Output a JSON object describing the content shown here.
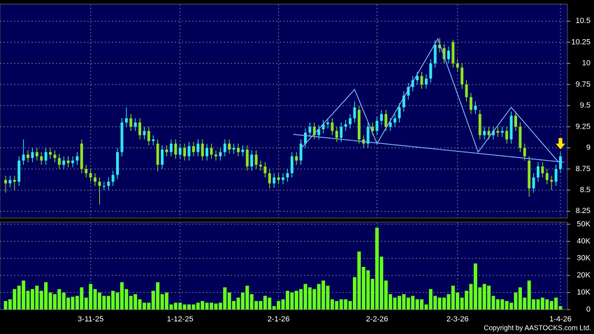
{
  "chart_data": [
    {
      "type": "candlestick",
      "up_color": "#33e4ee",
      "down_color": "#8fe022",
      "background": "#000058",
      "grid": true,
      "ylim": [
        8.17,
        10.7
      ],
      "yticks": [
        8.25,
        8.5,
        8.75,
        9,
        9.25,
        9.5,
        9.75,
        10,
        10.25,
        10.5
      ],
      "open": [
        8.62,
        8.58,
        8.62,
        8.6,
        8.85,
        8.92,
        8.88,
        8.95,
        8.9,
        8.85,
        8.95,
        8.92,
        8.88,
        8.8,
        8.85,
        8.82,
        8.85,
        9.05,
        8.75,
        8.7,
        8.65,
        8.6,
        8.55,
        8.55,
        8.6,
        8.68,
        8.95,
        9.3,
        9.35,
        9.25,
        9.3,
        9.15,
        9.2,
        9.08,
        9.05,
        8.8,
        8.98,
        8.95,
        9.05,
        8.92,
        9.0,
        8.9,
        9.02,
        8.95,
        9.05,
        8.9,
        9.0,
        8.92,
        8.9,
        8.95,
        9.05,
        8.98,
        9.0,
        8.95,
        8.98,
        8.78,
        8.92,
        8.8,
        8.78,
        8.7,
        8.58,
        8.65,
        8.62,
        8.65,
        8.7,
        8.9,
        8.85,
        9.05,
        9.18,
        9.25,
        9.15,
        9.22,
        9.28,
        9.3,
        9.2,
        9.12,
        9.25,
        9.28,
        9.35,
        9.45,
        9.1,
        9.05,
        9.25,
        9.2,
        9.32,
        9.4,
        9.25,
        9.3,
        9.35,
        9.48,
        9.62,
        9.72,
        9.8,
        9.85,
        9.75,
        9.82,
        10.0,
        10.22,
        10.18,
        10.05,
        10.25,
        10.0,
        9.95,
        9.75,
        9.6,
        9.45,
        9.4,
        9.15,
        9.2,
        9.15,
        9.2,
        9.18,
        9.2,
        9.1,
        9.38,
        9.25,
        9.0,
        8.85,
        8.52,
        8.65,
        8.78,
        8.7,
        8.62,
        8.6,
        8.75
      ],
      "high": [
        8.67,
        8.67,
        8.67,
        8.9,
        9.1,
        8.97,
        9.0,
        9.0,
        8.95,
        9.0,
        9.0,
        8.97,
        8.93,
        8.9,
        8.9,
        8.9,
        8.95,
        9.1,
        8.8,
        8.75,
        8.7,
        8.65,
        8.6,
        8.65,
        8.73,
        9.0,
        9.35,
        9.48,
        9.4,
        9.35,
        9.35,
        9.25,
        9.25,
        9.15,
        9.1,
        9.03,
        9.03,
        9.1,
        9.1,
        9.05,
        9.05,
        9.07,
        9.07,
        9.1,
        9.1,
        9.05,
        9.05,
        8.97,
        9.0,
        9.1,
        9.1,
        9.05,
        9.05,
        9.03,
        9.03,
        8.97,
        8.97,
        8.85,
        8.83,
        8.75,
        8.7,
        8.7,
        8.7,
        8.75,
        8.95,
        8.95,
        9.1,
        9.23,
        9.3,
        9.3,
        9.27,
        9.33,
        9.35,
        9.35,
        9.25,
        9.3,
        9.33,
        9.4,
        9.55,
        9.5,
        9.15,
        9.3,
        9.3,
        9.37,
        9.45,
        9.45,
        9.35,
        9.4,
        9.53,
        9.67,
        9.77,
        9.85,
        9.9,
        9.9,
        9.87,
        10.05,
        10.27,
        10.3,
        10.23,
        10.2,
        10.28,
        10.05,
        10.0,
        9.8,
        9.65,
        9.55,
        9.45,
        9.25,
        9.25,
        9.25,
        9.25,
        9.25,
        9.25,
        9.43,
        9.43,
        9.3,
        9.05,
        8.9,
        8.7,
        8.83,
        8.83,
        8.75,
        8.67,
        8.8,
        8.95
      ],
      "low": [
        8.47,
        8.53,
        8.5,
        8.55,
        8.8,
        8.83,
        8.83,
        8.85,
        8.8,
        8.8,
        8.87,
        8.83,
        8.75,
        8.75,
        8.77,
        8.77,
        8.8,
        8.7,
        8.65,
        8.6,
        8.55,
        8.33,
        8.5,
        8.5,
        8.55,
        8.63,
        8.9,
        9.25,
        9.2,
        9.2,
        9.1,
        9.1,
        9.03,
        9.03,
        8.72,
        8.75,
        8.9,
        8.9,
        8.87,
        8.87,
        8.85,
        8.85,
        8.9,
        8.9,
        8.85,
        8.85,
        8.87,
        8.85,
        8.85,
        8.9,
        8.93,
        8.93,
        8.9,
        8.9,
        8.73,
        8.73,
        8.75,
        8.73,
        8.65,
        8.52,
        8.53,
        8.57,
        8.57,
        8.6,
        8.65,
        8.8,
        8.8,
        9.0,
        9.13,
        9.1,
        9.1,
        9.17,
        9.23,
        9.15,
        9.07,
        9.07,
        9.2,
        9.23,
        9.3,
        9.05,
        9.0,
        9.0,
        9.15,
        9.15,
        9.27,
        9.2,
        9.2,
        9.25,
        9.3,
        9.43,
        9.57,
        9.67,
        9.75,
        9.7,
        9.7,
        9.77,
        9.95,
        10.13,
        10.0,
        10.0,
        9.95,
        9.9,
        9.7,
        9.55,
        9.4,
        9.4,
        9.1,
        9.1,
        9.1,
        9.1,
        9.13,
        9.13,
        9.05,
        9.05,
        9.2,
        8.95,
        8.85,
        8.42,
        8.47,
        8.6,
        8.65,
        8.57,
        8.5,
        8.55,
        8.7
      ],
      "close": [
        8.58,
        8.62,
        8.6,
        8.85,
        8.92,
        8.88,
        8.95,
        8.9,
        8.85,
        8.95,
        8.92,
        8.88,
        8.8,
        8.85,
        8.82,
        8.85,
        8.9,
        8.75,
        8.7,
        8.65,
        8.6,
        8.55,
        8.55,
        8.6,
        8.68,
        8.95,
        9.3,
        9.35,
        9.25,
        9.3,
        9.15,
        9.2,
        9.08,
        9.1,
        8.8,
        8.98,
        8.95,
        9.05,
        8.92,
        9.0,
        8.9,
        9.02,
        8.95,
        9.05,
        8.9,
        9.0,
        8.92,
        8.9,
        8.95,
        9.05,
        8.98,
        9.0,
        8.95,
        8.98,
        8.78,
        8.92,
        8.8,
        8.78,
        8.7,
        8.58,
        8.65,
        8.62,
        8.65,
        8.7,
        8.9,
        8.85,
        9.05,
        9.18,
        9.25,
        9.15,
        9.22,
        9.28,
        9.3,
        9.2,
        9.12,
        9.25,
        9.28,
        9.35,
        9.48,
        9.1,
        9.05,
        9.25,
        9.2,
        9.32,
        9.4,
        9.25,
        9.3,
        9.35,
        9.48,
        9.62,
        9.72,
        9.8,
        9.85,
        9.75,
        9.82,
        10.0,
        10.22,
        10.18,
        10.05,
        10.15,
        10.0,
        9.95,
        9.75,
        9.6,
        9.45,
        9.5,
        9.15,
        9.2,
        9.15,
        9.2,
        9.18,
        9.2,
        9.1,
        9.38,
        9.25,
        9.0,
        8.9,
        8.52,
        8.65,
        8.78,
        8.7,
        8.62,
        8.6,
        8.75,
        8.9
      ],
      "overlay_lines": [
        {
          "color": "#7fb6ff",
          "x": [
            65.8,
            78,
            83,
            96.6,
            105.6,
            113,
            123.6
          ],
          "y": [
            8.98,
            9.69,
            9.05,
            10.29,
            8.95,
            9.48,
            8.83
          ]
        },
        {
          "color": "#7fb6ff",
          "x": [
            64.3,
            124.8
          ],
          "y": [
            9.16,
            8.83
          ]
        }
      ]
    },
    {
      "type": "bar",
      "color": "#66ff1a",
      "background": "#000058",
      "grid": true,
      "ylim": [
        0,
        51200
      ],
      "yticks": [
        0,
        {
          "value": 10000,
          "label": "10K"
        },
        {
          "value": 20000,
          "label": "20K"
        },
        {
          "value": 30000,
          "label": "30K"
        },
        {
          "value": 40000,
          "label": "40K"
        },
        {
          "value": 50000,
          "label": "50K"
        }
      ],
      "categories": [
        null,
        null,
        null,
        null,
        null,
        null,
        null,
        null,
        null,
        null,
        null,
        null,
        null,
        null,
        null,
        null,
        null,
        null,
        null,
        "3-11-25",
        null,
        null,
        null,
        null,
        null,
        null,
        null,
        null,
        null,
        null,
        null,
        null,
        null,
        null,
        null,
        null,
        null,
        null,
        null,
        "1-12-25",
        null,
        null,
        null,
        null,
        null,
        null,
        null,
        null,
        null,
        null,
        null,
        null,
        null,
        null,
        null,
        null,
        null,
        null,
        null,
        null,
        null,
        "2-1-26",
        null,
        null,
        null,
        null,
        null,
        null,
        null,
        null,
        null,
        null,
        null,
        null,
        null,
        null,
        null,
        null,
        null,
        null,
        null,
        null,
        null,
        "2-2-26",
        null,
        null,
        null,
        null,
        null,
        null,
        null,
        null,
        null,
        null,
        null,
        null,
        null,
        null,
        null,
        null,
        null,
        "2-3-26",
        null,
        null,
        null,
        null,
        null,
        null,
        null,
        null,
        null,
        null,
        null,
        null,
        null,
        null,
        null,
        null,
        null,
        null,
        null,
        null,
        null,
        null,
        "1-4-26"
      ],
      "values": [
        5000,
        6000,
        12000,
        14000,
        17000,
        11000,
        12000,
        14000,
        11000,
        16000,
        10000,
        9000,
        12000,
        10000,
        7000,
        7500,
        8000,
        13000,
        7000,
        15000,
        12000,
        10000,
        8000,
        8000,
        11000,
        10000,
        16000,
        12000,
        8000,
        9000,
        6000,
        4000,
        4000,
        11000,
        16000,
        9000,
        10000,
        3000,
        4000,
        4000,
        3000,
        3000,
        3000,
        4000,
        5000,
        4000,
        4000,
        3500,
        4000,
        13000,
        10000,
        5000,
        7000,
        10000,
        14000,
        9000,
        5000,
        5000,
        8000,
        7000,
        2000,
        5000,
        6000,
        11000,
        10000,
        11000,
        12000,
        15000,
        13000,
        12000,
        15000,
        17000,
        14000,
        6000,
        5000,
        6000,
        6000,
        5000,
        19000,
        34000,
        25000,
        23000,
        18000,
        48000,
        31000,
        17000,
        9000,
        7000,
        8000,
        9000,
        7000,
        8000,
        6000,
        6000,
        3000,
        12000,
        8000,
        7000,
        7000,
        9000,
        14000,
        10000,
        7000,
        11000,
        15000,
        27000,
        13000,
        15000,
        14000,
        8000,
        6000,
        6000,
        5000,
        4000,
        10000,
        13000,
        7000,
        17000,
        6000,
        6000,
        7000,
        6000,
        5000,
        7000,
        2000
      ]
    }
  ],
  "footer": "Copyright by AASTOCKS.com Ltd."
}
